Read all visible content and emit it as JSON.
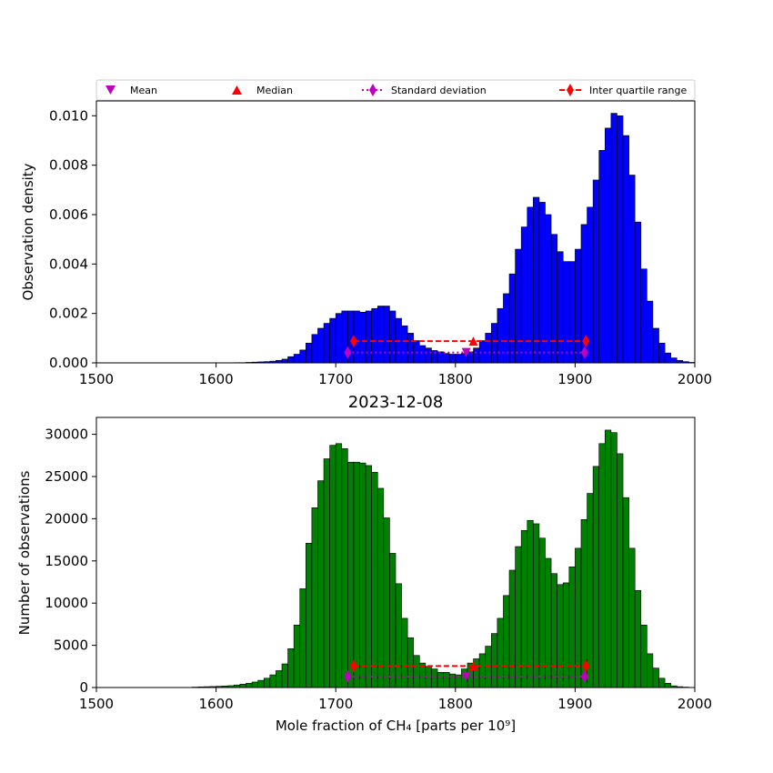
{
  "legend": {
    "items": [
      {
        "label": "Mean",
        "marker": "triangle-down",
        "color": "#bf00bf"
      },
      {
        "label": "Median",
        "marker": "triangle-up",
        "color": "#ff0000"
      },
      {
        "label": "Standard deviation",
        "marker": "thin-diamond-dotted",
        "color": "#bf00bf"
      },
      {
        "label": "Inter quartile range",
        "marker": "thin-diamond-dashed",
        "color": "#ff0000"
      }
    ]
  },
  "colors": {
    "top_bars": "#0000ff",
    "bottom_bars": "#008000",
    "bar_edge": "#000000",
    "mean": "#bf00bf",
    "median": "#ff0000",
    "std": "#bf00bf",
    "iqr": "#ff0000"
  },
  "chart_data": [
    {
      "type": "bar",
      "title": "",
      "xlabel": "",
      "ylabel": "Observation density",
      "xlim": [
        1500,
        2000
      ],
      "ylim": [
        0,
        0.0106
      ],
      "xticks": [
        1500,
        1600,
        1700,
        1800,
        1900,
        2000
      ],
      "yticks": [
        "0.000",
        "0.002",
        "0.004",
        "0.006",
        "0.008",
        "0.010"
      ],
      "ytick_values": [
        0,
        0.002,
        0.004,
        0.006,
        0.008,
        0.01
      ],
      "bin_width": 5,
      "bin_starts": [
        1580,
        1585,
        1590,
        1595,
        1600,
        1605,
        1610,
        1615,
        1620,
        1625,
        1630,
        1635,
        1640,
        1645,
        1650,
        1655,
        1660,
        1665,
        1670,
        1675,
        1680,
        1685,
        1690,
        1695,
        1700,
        1705,
        1710,
        1715,
        1720,
        1725,
        1730,
        1735,
        1740,
        1745,
        1750,
        1755,
        1760,
        1765,
        1770,
        1775,
        1780,
        1785,
        1790,
        1795,
        1800,
        1805,
        1810,
        1815,
        1820,
        1825,
        1830,
        1835,
        1840,
        1845,
        1850,
        1855,
        1860,
        1865,
        1870,
        1875,
        1880,
        1885,
        1890,
        1895,
        1900,
        1905,
        1910,
        1915,
        1920,
        1925,
        1930,
        1935,
        1940,
        1945,
        1950,
        1955,
        1960,
        1965,
        1970,
        1975,
        1980,
        1985,
        1990,
        1995
      ],
      "values": [
        0,
        0,
        0,
        0,
        0,
        0,
        0,
        1e-05,
        1e-05,
        2e-05,
        3e-05,
        4e-05,
        5e-05,
        7e-05,
        0.0001,
        0.00015,
        0.00025,
        0.00035,
        0.00052,
        0.0008,
        0.00115,
        0.0014,
        0.0016,
        0.0018,
        0.002,
        0.0021,
        0.0021,
        0.0021,
        0.00205,
        0.0021,
        0.0022,
        0.0023,
        0.0023,
        0.0021,
        0.0018,
        0.0015,
        0.0012,
        0.0009,
        0.0007,
        0.0006,
        0.0005,
        0.00045,
        0.00038,
        0.00035,
        0.00035,
        0.00038,
        0.00045,
        0.0006,
        0.0009,
        0.0012,
        0.0016,
        0.0022,
        0.0028,
        0.0036,
        0.0046,
        0.0055,
        0.0063,
        0.0067,
        0.0065,
        0.006,
        0.0052,
        0.0045,
        0.0041,
        0.0041,
        0.0046,
        0.0056,
        0.0063,
        0.0074,
        0.0086,
        0.0095,
        0.0101,
        0.01,
        0.0092,
        0.0076,
        0.0057,
        0.0038,
        0.0025,
        0.0014,
        0.0008,
        0.0004,
        0.0002,
        0.0001,
        5e-05,
        2e-05
      ],
      "stats": {
        "mean": 1809,
        "median": 1815,
        "std_range": [
          1710,
          1908
        ],
        "iqr_range": [
          1715,
          1909
        ],
        "std_y": 0.00042,
        "iqr_y": 0.00088
      }
    },
    {
      "type": "bar",
      "title": "2023-12-08",
      "xlabel": "Mole fraction of CH₄ [parts per 10⁹]",
      "ylabel": "Number of observations",
      "xlim": [
        1500,
        2000
      ],
      "ylim": [
        0,
        32000
      ],
      "xticks": [
        1500,
        1600,
        1700,
        1800,
        1900,
        2000
      ],
      "yticks": [
        "0",
        "5000",
        "10000",
        "15000",
        "20000",
        "25000",
        "30000"
      ],
      "ytick_values": [
        0,
        5000,
        10000,
        15000,
        20000,
        25000,
        30000
      ],
      "bin_width": 5,
      "bin_starts": [
        1580,
        1585,
        1590,
        1595,
        1600,
        1605,
        1610,
        1615,
        1620,
        1625,
        1630,
        1635,
        1640,
        1645,
        1650,
        1655,
        1660,
        1665,
        1670,
        1675,
        1680,
        1685,
        1690,
        1695,
        1700,
        1705,
        1710,
        1715,
        1720,
        1725,
        1730,
        1735,
        1740,
        1745,
        1750,
        1755,
        1760,
        1765,
        1770,
        1775,
        1780,
        1785,
        1790,
        1795,
        1800,
        1805,
        1810,
        1815,
        1820,
        1825,
        1830,
        1835,
        1840,
        1845,
        1850,
        1855,
        1860,
        1865,
        1870,
        1875,
        1880,
        1885,
        1890,
        1895,
        1900,
        1905,
        1910,
        1915,
        1920,
        1925,
        1930,
        1935,
        1940,
        1945,
        1950,
        1955,
        1960,
        1965,
        1970,
        1975,
        1980,
        1985,
        1990,
        1995
      ],
      "values": [
        50,
        80,
        100,
        120,
        150,
        180,
        220,
        300,
        400,
        500,
        650,
        850,
        1100,
        1500,
        2000,
        2800,
        4600,
        7400,
        11700,
        17100,
        21300,
        24500,
        27100,
        28700,
        28900,
        28300,
        26700,
        26700,
        26600,
        26300,
        25500,
        23600,
        20100,
        15900,
        12300,
        8200,
        5900,
        3800,
        2900,
        2500,
        2200,
        1800,
        1800,
        1600,
        1500,
        2200,
        2900,
        3400,
        4000,
        4900,
        6400,
        8200,
        10900,
        13900,
        16700,
        18600,
        19800,
        19400,
        17700,
        15300,
        13500,
        12200,
        12400,
        14300,
        16500,
        19900,
        23000,
        26200,
        28900,
        30500,
        30200,
        27700,
        22500,
        16500,
        11500,
        7400,
        4000,
        2300,
        1100,
        500,
        200,
        100,
        50,
        20
      ],
      "stats": {
        "mean": 1809,
        "median": 1815,
        "std_range": [
          1710,
          1908
        ],
        "iqr_range": [
          1715,
          1909
        ],
        "std_y": 1300,
        "iqr_y": 2550
      }
    }
  ]
}
